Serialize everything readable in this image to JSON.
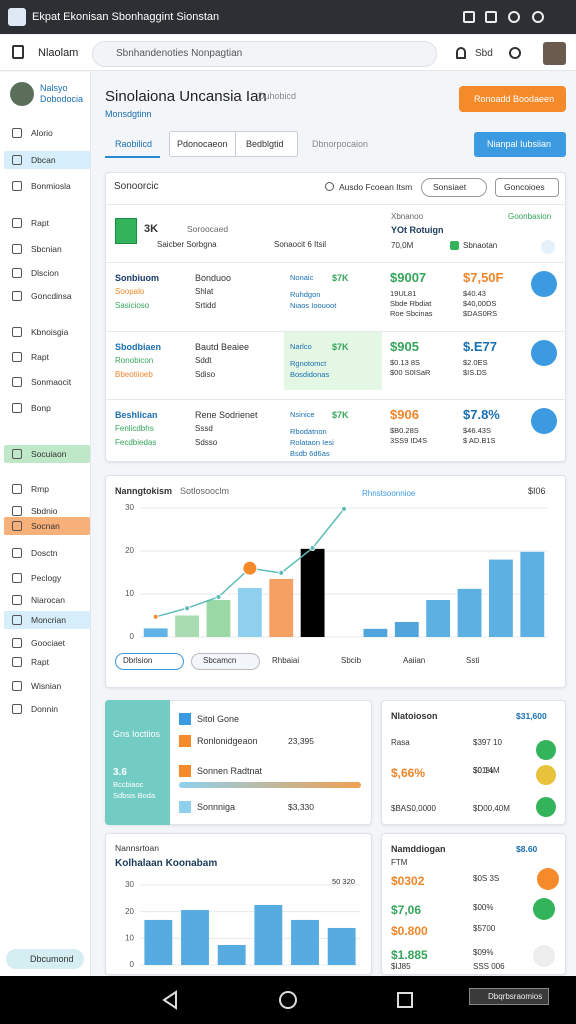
{
  "status_bar": {
    "app_title": "Ekpat Ekonisan Sbonhaggint Sionstan"
  },
  "header": {
    "title": "Nlaolam",
    "search": "Sbnhandenoties Nonpagtian",
    "user": "Sbd"
  },
  "sidebar": {
    "profile": [
      "Nalsyo",
      "Dobodocia"
    ],
    "items": [
      "Alorio",
      "Dbcan",
      "Bonmiosla",
      "Rapt",
      "Sbcnian",
      "Dlscion",
      "Goncdinsa",
      "Kbnoisgia",
      "Rapt",
      "Sonmaocit",
      "Bonp",
      "Socuiaon",
      "Rmp",
      "Sbdnio",
      "Socnan",
      "Dosctn",
      "Peclogy",
      "Niarocan",
      "Moncrian",
      "Goociaet",
      "Rapt",
      "Wisnian",
      "Donnin"
    ],
    "footer": "Dbcumond"
  },
  "page": {
    "title": "Sinolaiona Uncansia Ian",
    "tag": "Duhobicd",
    "subtitle": "Monsdgtinn",
    "primary_button": "Ronoadd Boodaeen",
    "secondary_button": "Nianpal Iubsiian"
  },
  "tabs": [
    "Raobilicd",
    "Pdonocaeon",
    "Bedblgtid",
    "Dbnorpocaion"
  ],
  "table": {
    "title": "Sonoorcic",
    "search": "Ausdo Fcoean Itsm",
    "filter": "Sonsiaet",
    "sort": "Goncoioes",
    "summary": {
      "count": "3K",
      "count_label": "Soroocaed",
      "meta1": "Saicber Sorbgna",
      "meta2": "Sonaocit 6 Itsil",
      "col_title": "Xbnanoo",
      "col_value": "YOt Rotuign",
      "col_sub": "70,0M",
      "right_title": "Goonbasion",
      "right_value": "Sbnaotan"
    },
    "rows": [
      {
        "name": [
          "Sonbiuom",
          "Soopalo",
          "Sasicioso"
        ],
        "mid": [
          "Bonduoo",
          "Shlat",
          "Srtidd"
        ],
        "tag": [
          "Nonaic",
          "$7K",
          "Ruhdgon",
          "Niaos Ioouoot"
        ],
        "v1": [
          "$9007",
          "19UL81",
          "Sbde Rbdiat",
          "Roe Sbcinas"
        ],
        "v2": [
          "$7,50F",
          "$40.43",
          "$40,00DS",
          "$DAS0RS"
        ]
      },
      {
        "name": [
          "Sbodbiaen",
          "Ronobicon",
          "Bbeotiioeb"
        ],
        "mid": [
          "Bautd Beaiee",
          "Sddt",
          "Sdiso"
        ],
        "tag": [
          "Narlco",
          "$7K",
          "Rgnotomct",
          "Bosdidonas"
        ],
        "v1": [
          "$905",
          "$0.13 8S",
          "$00 S0ISaR"
        ],
        "v2": [
          "$.E77",
          "$2.0ES",
          "$IS.DS"
        ]
      },
      {
        "name": [
          "Beshlican",
          "Fenlicdbhs",
          "Fecdbiedas"
        ],
        "mid": [
          "Rene Sodrienet",
          "Sssd",
          "Sdsso"
        ],
        "tag": [
          "Nsinice",
          "$7K",
          "Rbodatnon",
          "Rolataon Iesi",
          "Bsdb 6d6as"
        ],
        "v1": [
          "$906",
          "$B0.28S",
          "3SS9 ID4S"
        ],
        "v2": [
          "$7.8%",
          "$46.43S",
          "$ AD.B1S"
        ]
      }
    ]
  },
  "chart_data": [
    {
      "type": "bar",
      "title": "Nanngtokism",
      "subtitle": "Sotlosooclm",
      "annotation": "Rhnstsoonnioe",
      "right_label": "$I06",
      "categories": [
        null,
        null,
        null,
        null,
        null,
        null,
        null,
        null,
        null,
        null,
        null,
        null,
        null
      ],
      "series": [
        {
          "colors": [
            "#5fb3e6",
            "#a8dcb0",
            "#9ad8a6",
            "#8fd0ee",
            "#f7a063",
            null,
            "#a9def3",
            "#4fa5dc",
            "#4fa5dc",
            "#5cb0e2",
            "#5cb0e2",
            "#5cb0e2",
            "#5cb0e2"
          ],
          "values": [
            2,
            5,
            8.6,
            11.4,
            13.5,
            20.5,
            null,
            1.9,
            3.5,
            8.6,
            11.2,
            18,
            19.8
          ]
        },
        {
          "color": "#5cbcb8",
          "values": [
            4.7,
            6.7,
            9.3,
            16,
            14.9,
            20.7,
            29.8,
            null,
            null,
            null,
            null,
            null,
            null
          ]
        }
      ],
      "ylim": [
        0,
        30
      ],
      "yticks": [
        0,
        10,
        20,
        30
      ],
      "grid": true,
      "legend": [
        "Dbrlsion",
        "Sbcamcn",
        "Rhbaiai",
        "Sbcib",
        "Aaiian",
        "Ssti"
      ]
    },
    {
      "type": "bar",
      "title": "Nannsrtoan",
      "subtitle": "Kolhalaan Koonabam",
      "right_label": "50 320",
      "categories": [
        null,
        null,
        null,
        null,
        null,
        null
      ],
      "color": "#56ace0",
      "values": [
        16.9,
        20.6,
        7.5,
        22.5,
        16.9,
        13.9
      ],
      "ylim": [
        0,
        30
      ],
      "yticks": [
        0,
        10,
        20,
        30
      ],
      "grid": true
    }
  ],
  "summary_card": {
    "title": "Gns Ioctiios",
    "value": "3.6",
    "lines": [
      "Bccbiaoc",
      "Sdbsis Boda"
    ],
    "items": [
      {
        "label": "Sitol Gone"
      },
      {
        "label": "Ronlonidgeaon",
        "value": "23,395"
      },
      {
        "label": "Sonnen Radtnat"
      },
      {
        "label": "Sonnniga",
        "value": "$3,330"
      }
    ]
  },
  "stats_card": {
    "title": "Nlatoioson",
    "value": "$31,600",
    "rows": [
      [
        "Rasa",
        "$397 10"
      ],
      [
        "$,66%",
        "$01%",
        "$0.14M"
      ],
      [
        "$BAS0,0000",
        "$D00,40M"
      ]
    ]
  },
  "stats_card2": {
    "title": "Namddiogan",
    "value": "$8.60",
    "rows": [
      [
        "FTM"
      ],
      [
        "$0302",
        "$0S 3S"
      ],
      [
        "$7,06",
        "$00%"
      ],
      [
        "$0.800",
        "$5700"
      ],
      [
        "$1.885",
        "$09%"
      ],
      [
        "$IJ85",
        "SSS 006"
      ]
    ]
  },
  "nav_bar": {
    "chip": "Dbqrbsraomios"
  }
}
